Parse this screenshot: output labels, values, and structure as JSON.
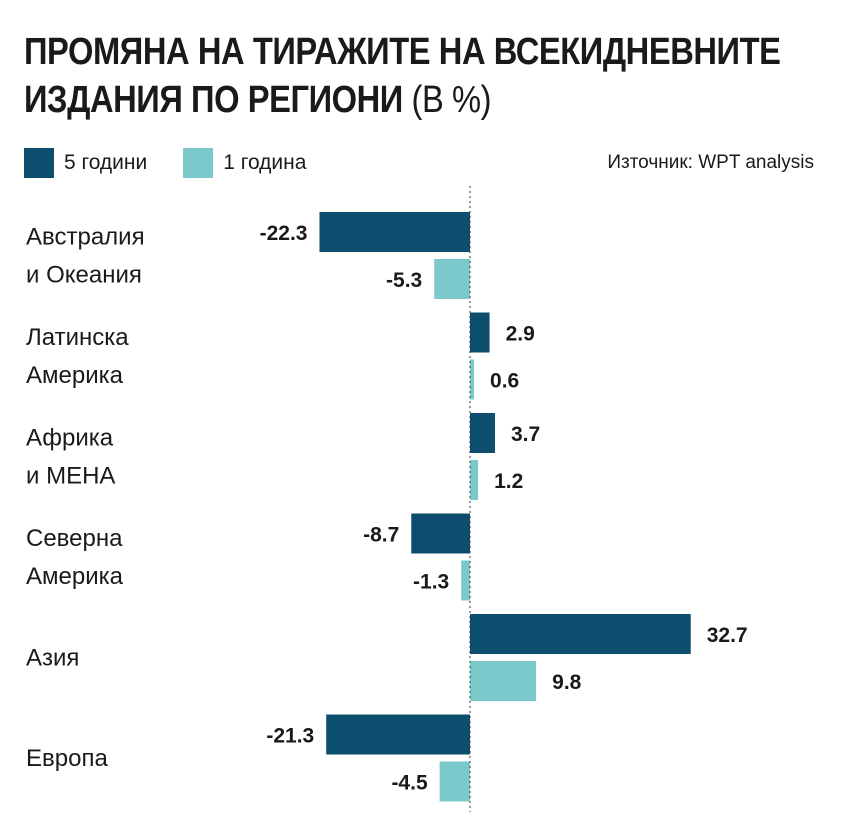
{
  "title_line1": "ПРОМЯНА НА ТИРАЖИТЕ НА ВСЕКИДНЕВНИТЕ",
  "title_line2_bold": "ИЗДАНИЯ ПО РЕГИОНИ",
  "title_line2_light": " (В %)",
  "source": "Източник: WPT analysis",
  "colors": {
    "series5": "#0d4d6e",
    "series1": "#7cc9cc"
  },
  "chart_data": {
    "type": "bar",
    "orientation": "horizontal",
    "title": "ПРОМЯНА НА ТИРАЖИТЕ НА ВСЕКИДНЕВНИТЕ ИЗДАНИЯ ПО РЕГИОНИ (В %)",
    "categories": [
      [
        "Австралия",
        "и Океания"
      ],
      [
        "Латинска",
        "Америка"
      ],
      [
        "Африка",
        "и МЕНА"
      ],
      [
        "Северна",
        "Америка"
      ],
      [
        "Азия"
      ],
      [
        "Европа"
      ]
    ],
    "series": [
      {
        "name": "5 години",
        "values": [
          -22.3,
          2.9,
          3.7,
          -8.7,
          32.7,
          -21.3
        ],
        "labels": [
          "-22.3",
          "2.9",
          "3.7",
          "-8.7",
          "32.7",
          "-21.3"
        ]
      },
      {
        "name": "1 година",
        "values": [
          -5.3,
          0.6,
          1.2,
          -1.3,
          9.8,
          -4.5
        ],
        "labels": [
          "-5.3",
          "0.6",
          "1.2",
          "-1.3",
          "9.8",
          "-4.5"
        ]
      }
    ],
    "zero_line": "dotted",
    "grid": false,
    "legend_position": "top-left"
  }
}
